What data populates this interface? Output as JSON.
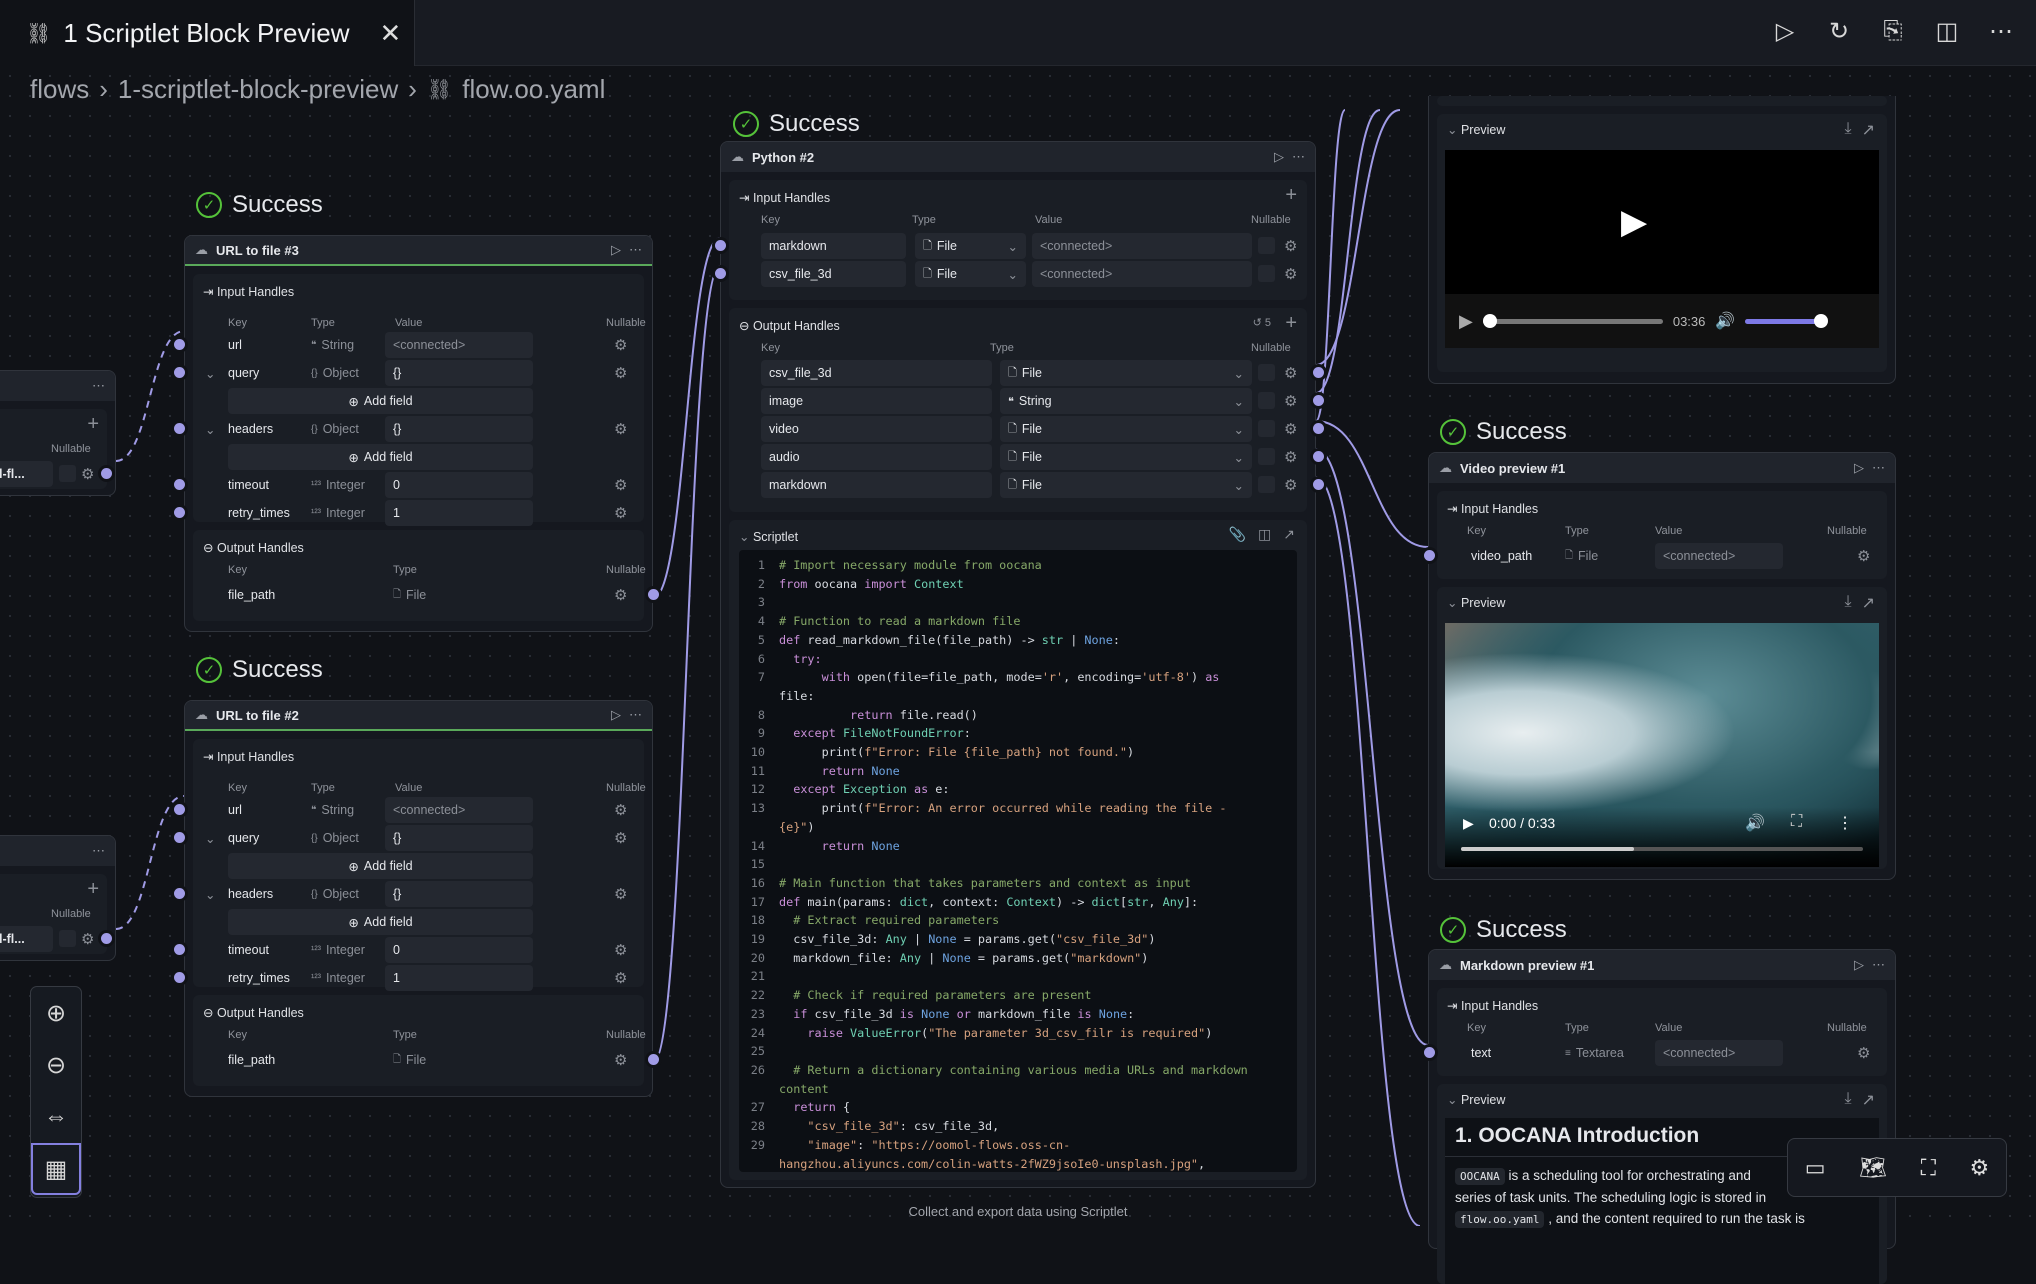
{
  "tab": {
    "title": "1 Scriptlet Block Preview",
    "icon": "flow-icon",
    "close": "✕"
  },
  "toolbar": {
    "icons": [
      "run-icon",
      "run-from-icon",
      "export-icon",
      "split-view-icon",
      "more-icon"
    ]
  },
  "breadcrumb": [
    "flows",
    "1-scriptlet-block-preview",
    "flow.oo.yaml"
  ],
  "common": {
    "success": "Success",
    "input_handles": "Input Handles",
    "output_handles": "Output Handles",
    "key": "Key",
    "type": "Type",
    "value": "Value",
    "nullable": "Nullable",
    "add_field": "Add field",
    "preview": "Preview",
    "scriptlet": "Scriptlet",
    "connected": "<connected>"
  },
  "left_partial": [
    {
      "value": "l-fl..."
    },
    {
      "value": "l-fl..."
    }
  ],
  "url_nodes": [
    {
      "title": "URL to file  #3",
      "inputs": [
        {
          "key": "url",
          "type": "String",
          "value": "<connected>",
          "connected": true
        },
        {
          "key": "query",
          "type": "Object",
          "value": "{}",
          "expandable": true
        },
        {
          "key": "headers",
          "type": "Object",
          "value": "{}",
          "expandable": true
        },
        {
          "key": "timeout",
          "type": "Integer",
          "value": "0"
        },
        {
          "key": "retry_times",
          "type": "Integer",
          "value": "1"
        }
      ],
      "outputs": [
        {
          "key": "file_path",
          "type": "File"
        }
      ]
    },
    {
      "title": "URL to file  #2",
      "inputs": [
        {
          "key": "url",
          "type": "String",
          "value": "<connected>",
          "connected": true
        },
        {
          "key": "query",
          "type": "Object",
          "value": "{}",
          "expandable": true
        },
        {
          "key": "headers",
          "type": "Object",
          "value": "{}",
          "expandable": true
        },
        {
          "key": "timeout",
          "type": "Integer",
          "value": "0"
        },
        {
          "key": "retry_times",
          "type": "Integer",
          "value": "1"
        }
      ],
      "outputs": [
        {
          "key": "file_path",
          "type": "File"
        }
      ]
    }
  ],
  "python": {
    "title": "Python #2",
    "history_count": "5",
    "inputs": [
      {
        "key": "markdown",
        "type": "File",
        "value": "<connected>"
      },
      {
        "key": "csv_file_3d",
        "type": "File",
        "value": "<connected>"
      }
    ],
    "outputs": [
      {
        "key": "csv_file_3d",
        "type": "File"
      },
      {
        "key": "image",
        "type": "String"
      },
      {
        "key": "video",
        "type": "File"
      },
      {
        "key": "audio",
        "type": "File"
      },
      {
        "key": "markdown",
        "type": "File"
      }
    ],
    "code": [
      "# Import necessary module from oocana",
      "from oocana import Context",
      "",
      "# Function to read a markdown file",
      "def read_markdown_file(file_path) -> str | None:",
      "  try:",
      "      with open(file=file_path, mode='r', encoding='utf-8') as file:",
      "          return file.read()",
      "  except FileNotFoundError:",
      "      print(f\"Error: File {file_path} not found.\")",
      "      return None",
      "  except Exception as e:",
      "      print(f\"Error: An error occurred while reading the file - {e}\")",
      "      return None",
      "",
      "# Main function that takes parameters and context as input",
      "def main(params: dict, context: Context) -> dict[str, Any]:",
      "  # Extract required parameters",
      "  csv_file_3d: Any | None = params.get(\"csv_file_3d\")",
      "  markdown_file: Any | None = params.get(\"markdown\")",
      "",
      "  # Check if required parameters are present",
      "  if csv_file_3d is None or markdown_file is None:",
      "    raise ValueError(\"The parameter 3d_csv_filr is required\")",
      "",
      "  # Return a dictionary containing various media URLs and markdown content",
      "  return {",
      "    \"csv_file_3d\": csv_file_3d,",
      "    \"image\": \"https://oomol-flows.oss-cn-hangzhou.aliyuncs.com/colin-watts-2fWZ9jsoIe0-unsplash.jpg\","
    ],
    "caption": "Collect and export data using Scriptlet"
  },
  "audio_preview": {
    "time": "03:36",
    "progress": 0,
    "volume": 0.95
  },
  "video_node": {
    "title": "Video preview #1",
    "input": {
      "key": "video_path",
      "type": "File",
      "value": "<connected>"
    },
    "time": "0:00 / 0:33",
    "buffered": 0.43
  },
  "markdown_node": {
    "title": "Markdown preview #1",
    "input": {
      "key": "text",
      "type": "Textarea",
      "value": "<connected>"
    },
    "heading": "1. OOCANA Introduction",
    "code1": "OOCANA",
    "text1": " is a scheduling tool for orchestrating and series of task units. The scheduling logic is stored in ",
    "code2": "flow.oo.yaml",
    "text2": " , and the content required to run the task is"
  },
  "zoom_controls": [
    "zoom-in-icon",
    "zoom-out-icon",
    "fit-view-icon",
    "layout-icon"
  ],
  "bottom_tools": [
    "panel-icon",
    "minimap-icon",
    "fullscreen-icon",
    "settings-icon"
  ],
  "colors": {
    "success": "#55c23a",
    "handle": "#a09be6",
    "accent": "#8480e0"
  }
}
